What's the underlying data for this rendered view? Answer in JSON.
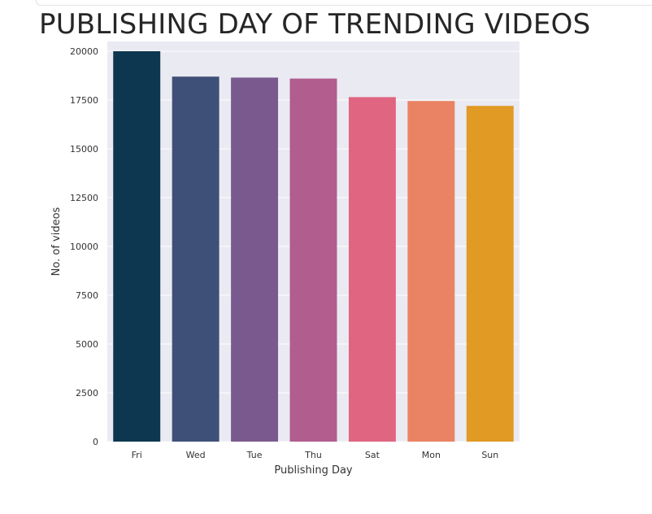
{
  "chart_data": {
    "type": "bar",
    "title": "PUBLISHING DAY OF TRENDING VIDEOS",
    "xlabel": "Publishing Day",
    "ylabel": "No. of videos",
    "categories": [
      "Fri",
      "Wed",
      "Tue",
      "Thu",
      "Sat",
      "Mon",
      "Sun"
    ],
    "values": [
      20000,
      18700,
      18650,
      18600,
      17650,
      17450,
      17200
    ],
    "colors": [
      "#0d3750",
      "#3f5078",
      "#7a5a8e",
      "#b15d8e",
      "#e06580",
      "#ea8364",
      "#e19a24"
    ],
    "ylim": [
      0,
      20500
    ],
    "yticks": [
      0,
      2500,
      5000,
      7500,
      10000,
      12500,
      15000,
      17500,
      20000
    ],
    "grid": true,
    "background": "#eaeaf2"
  }
}
